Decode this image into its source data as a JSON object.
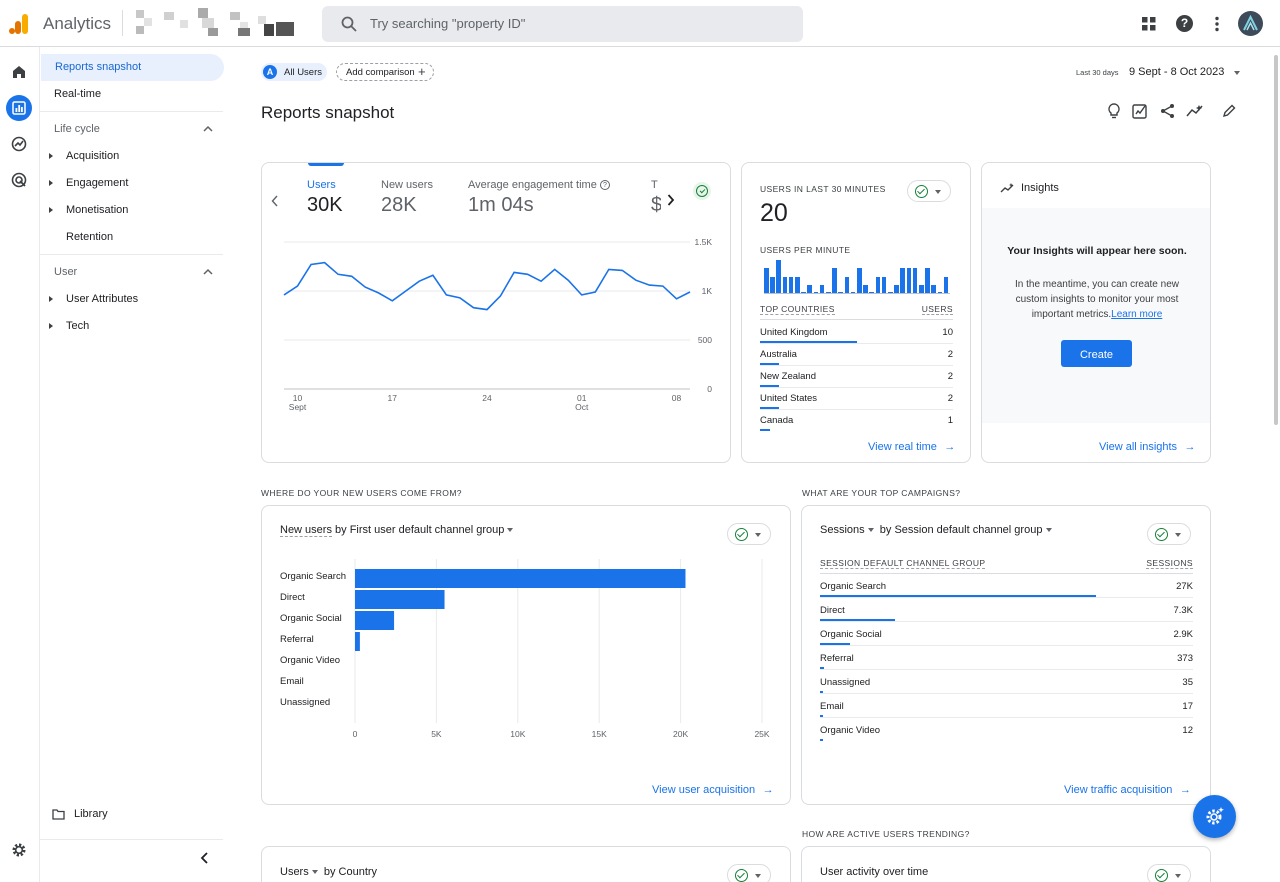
{
  "topbar": {
    "app_title": "Analytics",
    "search_placeholder": "Try searching \"property ID\"",
    "icons": [
      "apps-grid-icon",
      "help-icon",
      "more-vert-icon",
      "account-avatar-icon"
    ]
  },
  "rail": {
    "icons": [
      "home-icon",
      "reports-icon",
      "explore-icon",
      "advertising-icon",
      "settings-icon"
    ]
  },
  "nav": {
    "reports_snapshot": "Reports snapshot",
    "realtime": "Real-time",
    "lifecycle": "Life cycle",
    "lifecycle_items": [
      "Acquisition",
      "Engagement",
      "Monetisation",
      "Retention"
    ],
    "user": "User",
    "user_items": [
      "User Attributes",
      "Tech"
    ],
    "library": "Library"
  },
  "header": {
    "segment_badge": "A",
    "segment": "All Users",
    "add_comparison": "Add comparison",
    "date_small": "Last 30 days",
    "date_range": "9 Sept - 8 Oct 2023",
    "page_title": "Reports snapshot"
  },
  "overview": {
    "metrics": [
      {
        "label": "Users",
        "value": "30K"
      },
      {
        "label": "New users",
        "value": "28K"
      },
      {
        "label": "Average engagement time",
        "value": "1m 04s"
      },
      {
        "label": "T",
        "value": "$"
      }
    ],
    "chart_data": {
      "type": "line",
      "x_labels": [
        "10\nSept",
        "17",
        "24",
        "01\nOct",
        "08"
      ],
      "y_ticks": [
        "1.5K",
        "1K",
        "500",
        "0"
      ],
      "ylim": [
        0,
        1500
      ],
      "series": [
        {
          "values": [
            960,
            1050,
            1270,
            1290,
            1170,
            1150,
            1040,
            980,
            900,
            1000,
            1100,
            1160,
            960,
            930,
            830,
            810,
            950,
            1190,
            1170,
            1100,
            1220,
            1110,
            960,
            990,
            1220,
            1210,
            1110,
            1060,
            1050,
            920,
            990
          ]
        }
      ]
    }
  },
  "realtime": {
    "title": "USERS IN LAST 30 MINUTES",
    "count": "20",
    "per_minute": "USERS PER MINUTE",
    "bars": [
      3,
      2,
      4,
      2,
      2,
      2,
      0,
      1,
      0,
      1,
      0,
      3,
      0,
      2,
      0,
      3,
      1,
      0,
      2,
      2,
      0,
      1,
      3,
      3,
      3,
      1,
      3,
      1,
      0,
      2
    ],
    "countries_label": "TOP COUNTRIES",
    "users_label": "USERS",
    "countries": [
      {
        "name": "United Kingdom",
        "users": "10",
        "share": 0.5
      },
      {
        "name": "Australia",
        "users": "2",
        "share": 0.1
      },
      {
        "name": "New Zealand",
        "users": "2",
        "share": 0.1
      },
      {
        "name": "United States",
        "users": "2",
        "share": 0.1
      },
      {
        "name": "Canada",
        "users": "1",
        "share": 0.05
      }
    ],
    "link": "View real time"
  },
  "insights": {
    "title": "Insights",
    "headline": "Your Insights will appear here soon.",
    "body": "In the meantime, you can create new custom insights to monitor your most important metrics.",
    "learn_more": "Learn more",
    "create": "Create",
    "link": "View all insights"
  },
  "acquisition": {
    "section": "WHERE DO YOUR NEW USERS COME FROM?",
    "metric": "New users",
    "dimension": "by First user default channel group",
    "link": "View user acquisition",
    "chart_data": {
      "type": "bar",
      "orientation": "horizontal",
      "categories": [
        "Organic Search",
        "Direct",
        "Organic Social",
        "Referral",
        "Organic Video",
        "Email",
        "Unassigned"
      ],
      "values": [
        20300,
        5500,
        2400,
        300,
        10,
        10,
        5
      ],
      "xlim": [
        0,
        25000
      ],
      "x_ticks": [
        "0",
        "5K",
        "10K",
        "15K",
        "20K",
        "25K"
      ]
    }
  },
  "campaigns": {
    "section": "WHAT ARE YOUR TOP CAMPAIGNS?",
    "metric": "Sessions",
    "dimension": "by Session default channel group",
    "col1": "SESSION DEFAULT CHANNEL GROUP",
    "col2": "SESSIONS",
    "rows": [
      {
        "name": "Organic Search",
        "value": "27K",
        "share": 0.74
      },
      {
        "name": "Direct",
        "value": "7.3K",
        "share": 0.2
      },
      {
        "name": "Organic Social",
        "value": "2.9K",
        "share": 0.08
      },
      {
        "name": "Referral",
        "value": "373",
        "share": 0.01
      },
      {
        "name": "Unassigned",
        "value": "35",
        "share": 0.003
      },
      {
        "name": "Email",
        "value": "17",
        "share": 0.002
      },
      {
        "name": "Organic Video",
        "value": "12",
        "share": 0.001
      }
    ],
    "link": "View traffic acquisition"
  },
  "bottom": {
    "section": "HOW ARE ACTIVE USERS TRENDING?",
    "left_metric": "Users",
    "left_dimension": "by Country",
    "right_title": "User activity over time"
  },
  "colors": {
    "accent": "#1a73e8",
    "ok": "#188038",
    "logo1": "#f9ab00",
    "logo2": "#e37400"
  }
}
